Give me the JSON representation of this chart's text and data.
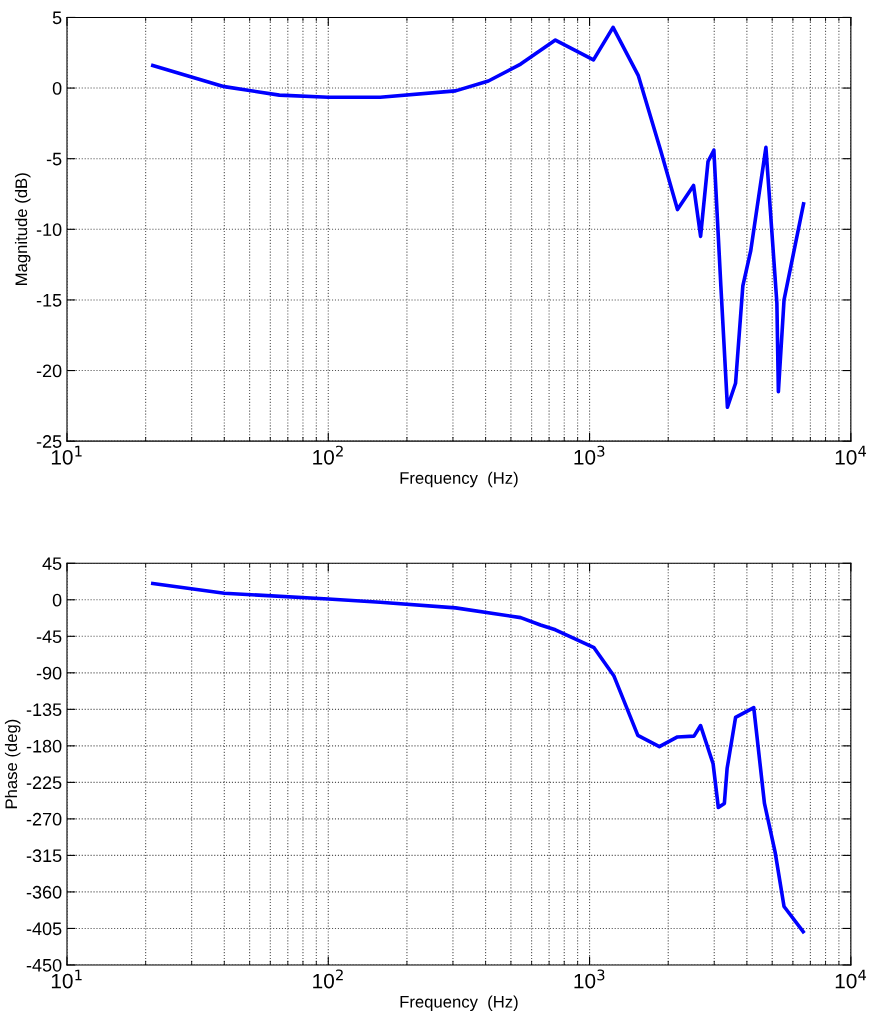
{
  "chart_data": [
    {
      "type": "line",
      "xlabel": "Frequency  (Hz)",
      "ylabel": "Magnitude (dB)",
      "log": "x",
      "grid": true,
      "marker": "none",
      "line_style": "solid",
      "xlim": [
        10,
        10000
      ],
      "ylim": [
        -25,
        5
      ],
      "xticks": [
        {
          "value": 10,
          "label": "10$^{1}$"
        },
        {
          "value": 100,
          "label": "10$^{2}$"
        },
        {
          "value": 1000,
          "label": "10$^{3}$"
        },
        {
          "value": 10000,
          "label": "10$^{4}$"
        }
      ],
      "yticks": [
        -25,
        -20,
        -15,
        -10,
        -5,
        0,
        5
      ],
      "series": [
        {
          "color": "#0000ff",
          "x": [
            21.3,
            40,
            65,
            100,
            158,
            307,
            410,
            545,
            740,
            1035,
            1230,
            1535,
            1870,
            2170,
            2500,
            2660,
            2840,
            2990,
            3180,
            3370,
            3620,
            3860,
            4140,
            4730,
            5210,
            5280,
            5550,
            6590
          ],
          "values": [
            1.6,
            0.1,
            -0.5,
            -0.65,
            -0.65,
            -0.2,
            0.5,
            1.7,
            3.4,
            2.0,
            4.3,
            0.9,
            -4.4,
            -8.6,
            -6.9,
            -10.5,
            -5.2,
            -4.4,
            -14.0,
            -22.6,
            -20.9,
            -14.0,
            -11.5,
            -4.2,
            -15.2,
            -21.5,
            -15.0,
            -8.2
          ]
        }
      ]
    },
    {
      "type": "line",
      "xlabel": "Frequency  (Hz)",
      "ylabel": "Phase (deg)",
      "log": "x",
      "grid": true,
      "marker": "none",
      "line_style": "solid",
      "xlim": [
        10,
        10000
      ],
      "ylim": [
        -450,
        45
      ],
      "xticks": [
        {
          "value": 10,
          "label": "10$^{1}$"
        },
        {
          "value": 100,
          "label": "10$^{2}$"
        },
        {
          "value": 1000,
          "label": "10$^{3}$"
        },
        {
          "value": 10000,
          "label": "10$^{4}$"
        }
      ],
      "yticks": [
        -450,
        -405,
        -360,
        -315,
        -270,
        -225,
        -180,
        -135,
        -90,
        -45,
        0,
        45
      ],
      "series": [
        {
          "color": "#0000ff",
          "x": [
            21.3,
            40,
            100,
            158,
            307,
            545,
            649,
            740,
            1040,
            1240,
            1530,
            1850,
            2170,
            2510,
            2660,
            2970,
            3110,
            3280,
            3360,
            3620,
            4250,
            4670,
            5130,
            5550,
            6570
          ],
          "values": [
            20,
            8,
            1,
            -3,
            -10,
            -22,
            -31,
            -37,
            -59,
            -94,
            -167,
            -181,
            -169,
            -168,
            -155,
            -202,
            -256,
            -251,
            -208,
            -145,
            -133,
            -251,
            -311,
            -378,
            -409
          ]
        }
      ]
    }
  ]
}
